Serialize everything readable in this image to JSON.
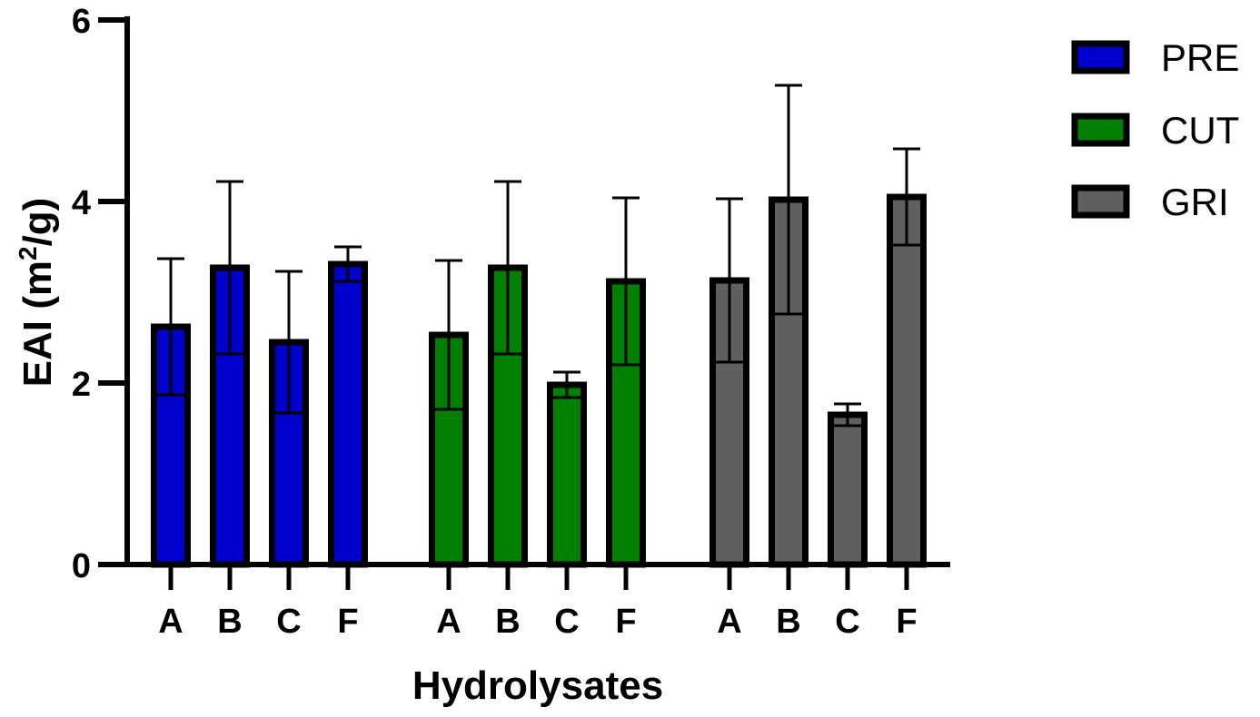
{
  "chart_data": {
    "type": "bar",
    "xlabel": "Hydrolysates",
    "ylabel_main": "EAI (m",
    "ylabel_sup": "2",
    "ylabel_tail": "/g)",
    "ylim": [
      0,
      6
    ],
    "yticks": [
      0,
      2,
      4,
      6
    ],
    "grid": false,
    "legend_position": "top-right",
    "groups": [
      {
        "series": "PRE",
        "color": "#0000cc",
        "bars": [
          {
            "category": "A",
            "value": 2.62,
            "error": 0.75
          },
          {
            "category": "B",
            "value": 3.27,
            "error": 0.95
          },
          {
            "category": "C",
            "value": 2.45,
            "error": 0.78
          },
          {
            "category": "F",
            "value": 3.31,
            "error": 0.19
          }
        ]
      },
      {
        "series": "CUT",
        "color": "#007f00",
        "bars": [
          {
            "category": "A",
            "value": 2.53,
            "error": 0.82
          },
          {
            "category": "B",
            "value": 3.27,
            "error": 0.95
          },
          {
            "category": "C",
            "value": 1.98,
            "error": 0.14
          },
          {
            "category": "F",
            "value": 3.12,
            "error": 0.92
          }
        ]
      },
      {
        "series": "GRI",
        "color": "#5f5f5f",
        "bars": [
          {
            "category": "A",
            "value": 3.13,
            "error": 0.9
          },
          {
            "category": "B",
            "value": 4.02,
            "error": 1.26
          },
          {
            "category": "C",
            "value": 1.65,
            "error": 0.12
          },
          {
            "category": "F",
            "value": 4.05,
            "error": 0.53
          }
        ]
      }
    ]
  }
}
